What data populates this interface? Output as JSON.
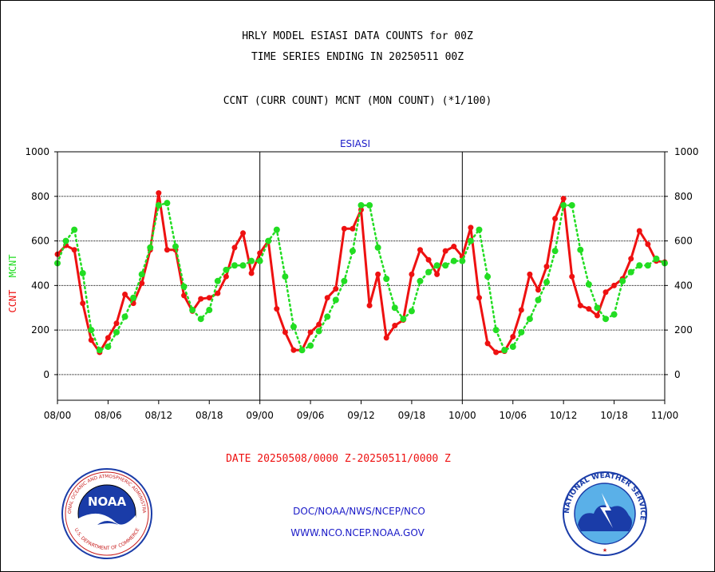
{
  "header": {
    "title_line1": "HRLY MODEL ESIASI DATA COUNTS for 00Z",
    "title_line2": "TIME SERIES ENDING IN 20250511 00Z",
    "subtitle": "CCNT (CURR COUNT) MCNT (MON COUNT) (*1/100)"
  },
  "chart_data": {
    "type": "line",
    "title": "ESIASI",
    "ylabel_left": [
      "CCNT",
      "MCNT"
    ],
    "xlabel": "DATE 20250508/0000 Z-20250511/0000 Z",
    "ylim": [
      -115,
      1000
    ],
    "yticks": [
      0,
      200,
      400,
      600,
      800,
      1000
    ],
    "xlim": [
      0,
      72
    ],
    "xtick_labels": [
      "08/00",
      "08/06",
      "08/12",
      "08/18",
      "09/00",
      "09/06",
      "09/12",
      "09/18",
      "10/00",
      "10/06",
      "10/12",
      "10/18",
      "11/00"
    ],
    "day_separators": [
      24,
      48
    ],
    "grid": true,
    "colors": {
      "CCNT": "#ee1111",
      "MCNT": "#22dd22"
    },
    "series": [
      {
        "name": "CCNT",
        "style": "solid",
        "x": [
          0,
          1,
          2,
          3,
          4,
          5,
          6,
          7,
          8,
          9,
          10,
          11,
          12,
          13,
          14,
          15,
          16,
          17,
          18,
          19,
          20,
          21,
          22,
          23,
          24,
          25,
          26,
          27,
          28,
          29,
          30,
          31,
          32,
          33,
          34,
          35,
          36,
          37,
          38,
          39,
          40,
          41,
          42,
          43,
          44,
          45,
          46,
          47,
          48,
          49,
          50,
          51,
          52,
          53,
          54,
          55,
          56,
          57,
          58,
          59,
          60,
          61,
          62,
          63,
          64,
          65,
          66,
          67,
          68,
          69,
          70,
          71,
          72
        ],
        "values": [
          540,
          580,
          560,
          320,
          155,
          100,
          165,
          230,
          360,
          320,
          410,
          560,
          815,
          560,
          560,
          355,
          285,
          340,
          345,
          365,
          440,
          570,
          635,
          455,
          545,
          600,
          295,
          190,
          110,
          110,
          190,
          225,
          345,
          385,
          655,
          655,
          740,
          310,
          450,
          165,
          220,
          245,
          450,
          560,
          515,
          450,
          555,
          575,
          530,
          660,
          345,
          140,
          100,
          105,
          170,
          290,
          450,
          380,
          485,
          700,
          790,
          440,
          310,
          295,
          265,
          370,
          400,
          430,
          520,
          645,
          585,
          510,
          505
        ],
        "ylim": [
          -115,
          1000
        ]
      },
      {
        "name": "MCNT",
        "style": "dotted",
        "x": [
          0,
          1,
          2,
          3,
          4,
          5,
          6,
          7,
          8,
          9,
          10,
          11,
          12,
          13,
          14,
          15,
          16,
          17,
          18,
          19,
          20,
          21,
          22,
          23,
          24,
          25,
          26,
          27,
          28,
          29,
          30,
          31,
          32,
          33,
          34,
          35,
          36,
          37,
          38,
          39,
          40,
          41,
          42,
          43,
          44,
          45,
          46,
          47,
          48,
          49,
          50,
          51,
          52,
          53,
          54,
          55,
          56,
          57,
          58,
          59,
          60,
          61,
          62,
          63,
          64,
          65,
          66,
          67,
          68,
          69,
          70,
          71,
          72
        ],
        "values": [
          500,
          600,
          650,
          455,
          200,
          110,
          125,
          190,
          260,
          345,
          450,
          570,
          760,
          770,
          575,
          395,
          290,
          250,
          290,
          420,
          470,
          490,
          490,
          510,
          510,
          600,
          650,
          440,
          215,
          110,
          130,
          195,
          260,
          335,
          420,
          555,
          760,
          760,
          570,
          430,
          300,
          250,
          285,
          420,
          460,
          490,
          490,
          510,
          510,
          600,
          650,
          440,
          200,
          110,
          125,
          190,
          250,
          335,
          415,
          555,
          760,
          760,
          560,
          405,
          300,
          250,
          270,
          420,
          460,
          490,
          490,
          520,
          500
        ],
        "ylim": [
          -115,
          1000
        ]
      }
    ]
  },
  "footer": {
    "line1": "DOC/NOAA/NWS/NCEP/NCO",
    "line2": "WWW.NCO.NCEP.NOAA.GOV",
    "noaa_logo_text": "NOAA",
    "noaa_ring_top": "NATIONAL OCEANIC AND ATMOSPHERIC ADMINISTRATION",
    "noaa_ring_bottom": "U.S. DEPARTMENT OF COMMERCE",
    "nws_ring_text": "NATIONAL WEATHER SERVICE"
  }
}
